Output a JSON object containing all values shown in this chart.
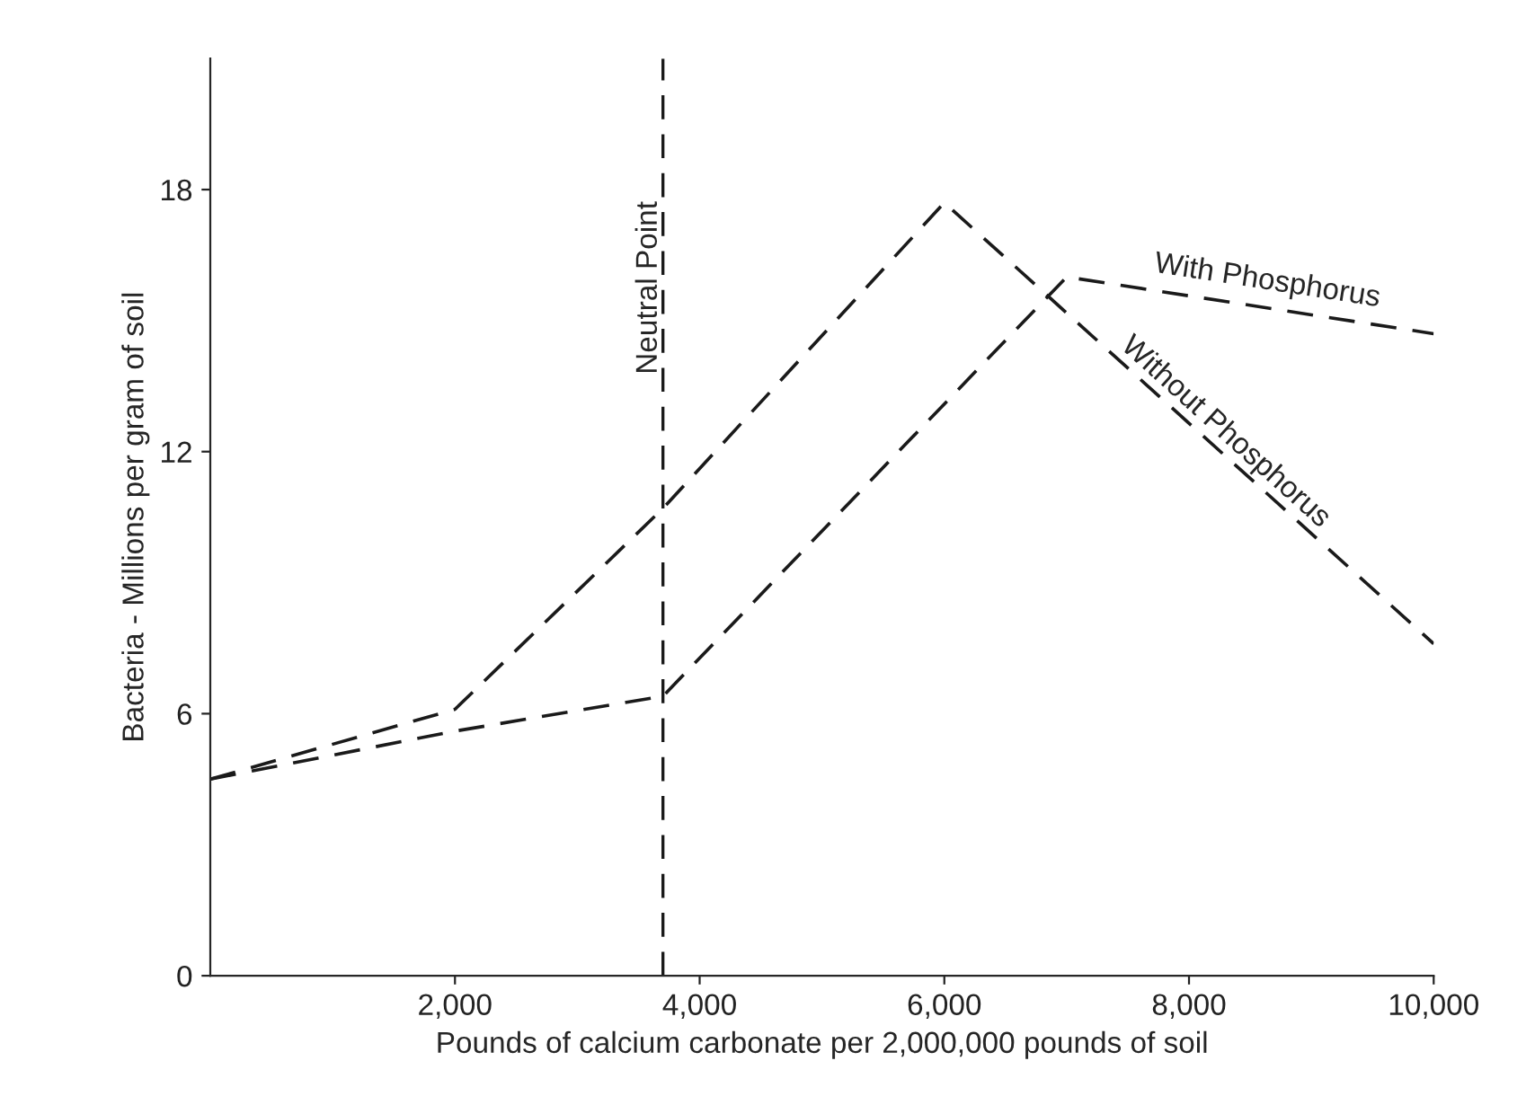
{
  "chart_data": {
    "type": "line",
    "xlabel": "Pounds of calcium carbonate per 2,000,000 pounds of soil",
    "ylabel": "Bacteria - Millions per gram of soil",
    "series": [
      {
        "name": "With Phosphorus",
        "color": "#1a1a1a",
        "x": [
          0,
          2000,
          3700,
          7000,
          10000
        ],
        "values": [
          4.5,
          5.6,
          6.4,
          16.0,
          14.7
        ]
      },
      {
        "name": "Without Phosphorus",
        "color": "#1a1a1a",
        "x": [
          0,
          2000,
          3700,
          6000,
          10000
        ],
        "values": [
          4.5,
          6.1,
          10.7,
          17.7,
          7.6
        ]
      }
    ],
    "xlim": [
      0,
      10000
    ],
    "ylim": [
      0,
      21
    ],
    "xticks": [
      {
        "value": 2000,
        "label": "2,000"
      },
      {
        "value": 4000,
        "label": "4,000"
      },
      {
        "value": 6000,
        "label": "6,000"
      },
      {
        "value": 8000,
        "label": "8,000"
      },
      {
        "value": 10000,
        "label": "10,000"
      }
    ],
    "yticks": [
      0,
      6,
      12,
      18
    ],
    "ref_lines": [
      {
        "axis": "x",
        "value": 3700,
        "label": "Neutral Point",
        "line_style": "dashed"
      }
    ],
    "line_style": "dashed",
    "marker": "none",
    "grid": false,
    "legend": false
  }
}
